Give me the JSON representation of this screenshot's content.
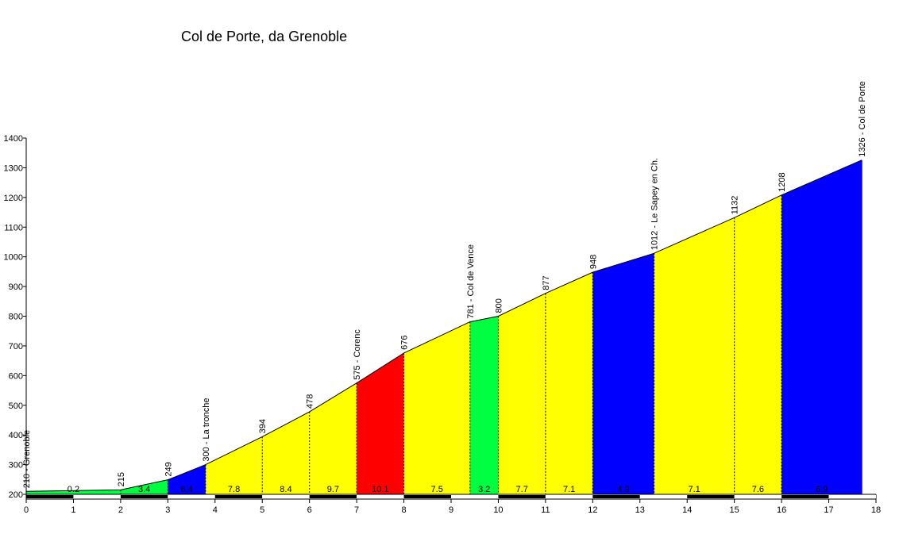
{
  "chart_data": {
    "type": "area",
    "title": "Col de Porte, da Grenoble",
    "xlabel": "",
    "ylabel": "",
    "xlim": [
      0,
      18
    ],
    "ylim": [
      200,
      1400
    ],
    "x_ticks": [
      0,
      1,
      2,
      3,
      4,
      5,
      6,
      7,
      8,
      9,
      10,
      11,
      12,
      13,
      14,
      15,
      16,
      17,
      18
    ],
    "y_ticks": [
      200,
      300,
      400,
      500,
      600,
      700,
      800,
      900,
      1000,
      1100,
      1200,
      1300,
      1400
    ],
    "points": [
      {
        "x": 0,
        "y": 210,
        "label": "210 - Grenoble"
      },
      {
        "x": 2,
        "y": 215,
        "label": "215"
      },
      {
        "x": 3,
        "y": 249,
        "label": "249"
      },
      {
        "x": 3.8,
        "y": 300,
        "label": "300 - La tronche"
      },
      {
        "x": 5,
        "y": 394,
        "label": "394"
      },
      {
        "x": 6,
        "y": 478,
        "label": "478"
      },
      {
        "x": 7,
        "y": 575,
        "label": "575 - Corenc"
      },
      {
        "x": 8,
        "y": 676,
        "label": "676"
      },
      {
        "x": 9.4,
        "y": 781,
        "label": "781 - Col de Vence"
      },
      {
        "x": 10,
        "y": 800,
        "label": "800"
      },
      {
        "x": 11,
        "y": 877,
        "label": "877"
      },
      {
        "x": 12,
        "y": 948,
        "label": "948"
      },
      {
        "x": 13.3,
        "y": 1012,
        "label": "1012 - Le Sapey en Ch."
      },
      {
        "x": 15,
        "y": 1132,
        "label": "1132"
      },
      {
        "x": 16,
        "y": 1208,
        "label": "1208"
      },
      {
        "x": 17.7,
        "y": 1326,
        "label": "1326 - Col de Porte"
      }
    ],
    "segments": [
      {
        "gradient": "0.2",
        "color": "#00ff40"
      },
      {
        "gradient": "3.4",
        "color": "#00ff40"
      },
      {
        "gradient": "6.4",
        "color": "#0000ff"
      },
      {
        "gradient": "7.8",
        "color": "#ffff00"
      },
      {
        "gradient": "8.4",
        "color": "#ffff00"
      },
      {
        "gradient": "9.7",
        "color": "#ffff00"
      },
      {
        "gradient": "10.1",
        "color": "#ff0000"
      },
      {
        "gradient": "7.5",
        "color": "#ffff00"
      },
      {
        "gradient": "3.2",
        "color": "#00ff40"
      },
      {
        "gradient": "7.7",
        "color": "#ffff00"
      },
      {
        "gradient": "7.1",
        "color": "#ffff00"
      },
      {
        "gradient": "4.9",
        "color": "#0000ff"
      },
      {
        "gradient": "7.1",
        "color": "#ffff00"
      },
      {
        "gradient": "7.6",
        "color": "#ffff00"
      },
      {
        "gradient": "6.9",
        "color": "#0000ff"
      }
    ]
  }
}
